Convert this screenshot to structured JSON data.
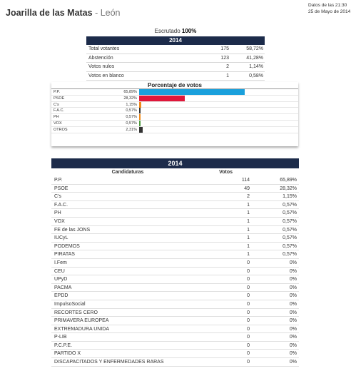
{
  "header": {
    "title": "Joarilla de las Matas",
    "separator": " - ",
    "province": "León"
  },
  "timestamp": {
    "line1": "Datos de las 21:30",
    "line2": "25 de Mayo de 2014"
  },
  "escrutado": {
    "label": "Escrutado ",
    "value": "100%"
  },
  "summary": {
    "year": "2014",
    "rows": [
      {
        "label": "Total votantes",
        "num": "175",
        "pct": "58,72%"
      },
      {
        "label": "Abstención",
        "num": "123",
        "pct": "41,28%"
      },
      {
        "label": "Votos nulos",
        "num": "2",
        "pct": "1,14%"
      },
      {
        "label": "Votos en blanco",
        "num": "1",
        "pct": "0,58%"
      }
    ]
  },
  "pct_chart": {
    "title": "Porcentaje de votos",
    "max_pct": 65.89,
    "rows": [
      {
        "label": "P.P.",
        "value": "65,89%",
        "pct": 65.89,
        "color": "#1aa0dc"
      },
      {
        "label": "PSOE",
        "value": "28,32%",
        "pct": 28.32,
        "color": "#e0173a"
      },
      {
        "label": "C's",
        "value": "1,15%",
        "pct": 1.15,
        "color": "#f08a1a"
      },
      {
        "label": "F.A.C.",
        "value": "0,57%",
        "pct": 0.57,
        "color": "#333333"
      },
      {
        "label": "PH",
        "value": "0,57%",
        "pct": 0.57,
        "color": "#f08a1a"
      },
      {
        "label": "VOX",
        "value": "0,57%",
        "pct": 0.57,
        "color": "#4a9a3a"
      },
      {
        "label": "OTROS",
        "value": "2,31%",
        "pct": 2.31,
        "color": "#333333"
      }
    ]
  },
  "results": {
    "year": "2014",
    "col_candidaturas": "Candidaturas",
    "col_votos": "Votos",
    "rows": [
      {
        "name": "P.P.",
        "votes": "114",
        "pct": "65,89%"
      },
      {
        "name": "PSOE",
        "votes": "49",
        "pct": "28,32%"
      },
      {
        "name": "C's",
        "votes": "2",
        "pct": "1,15%"
      },
      {
        "name": "F.A.C.",
        "votes": "1",
        "pct": "0,57%"
      },
      {
        "name": "PH",
        "votes": "1",
        "pct": "0,57%"
      },
      {
        "name": "VOX",
        "votes": "1",
        "pct": "0,57%"
      },
      {
        "name": "FE de las JONS",
        "votes": "1",
        "pct": "0,57%"
      },
      {
        "name": "IUCyL",
        "votes": "1",
        "pct": "0,57%"
      },
      {
        "name": "PODEMOS",
        "votes": "1",
        "pct": "0,57%"
      },
      {
        "name": "PIRATAS",
        "votes": "1",
        "pct": "0,57%"
      },
      {
        "name": "I.Fem",
        "votes": "0",
        "pct": "0%"
      },
      {
        "name": "CEU",
        "votes": "0",
        "pct": "0%"
      },
      {
        "name": "UPyD",
        "votes": "0",
        "pct": "0%"
      },
      {
        "name": "PACMA",
        "votes": "0",
        "pct": "0%"
      },
      {
        "name": "EPDD",
        "votes": "0",
        "pct": "0%"
      },
      {
        "name": "ImpulsoSocial",
        "votes": "0",
        "pct": "0%"
      },
      {
        "name": "RECORTES CERO",
        "votes": "0",
        "pct": "0%"
      },
      {
        "name": "PRIMAVERA EUROPEA",
        "votes": "0",
        "pct": "0%"
      },
      {
        "name": "EXTREMADURA UNIDA",
        "votes": "0",
        "pct": "0%"
      },
      {
        "name": "P-LIB",
        "votes": "0",
        "pct": "0%"
      },
      {
        "name": "P.C.P.E.",
        "votes": "0",
        "pct": "0%"
      },
      {
        "name": "PARTIDO X",
        "votes": "0",
        "pct": "0%"
      },
      {
        "name": "DISCAPACITADOS Y ENFERMEDADES RARAS",
        "votes": "0",
        "pct": "0%"
      }
    ]
  }
}
